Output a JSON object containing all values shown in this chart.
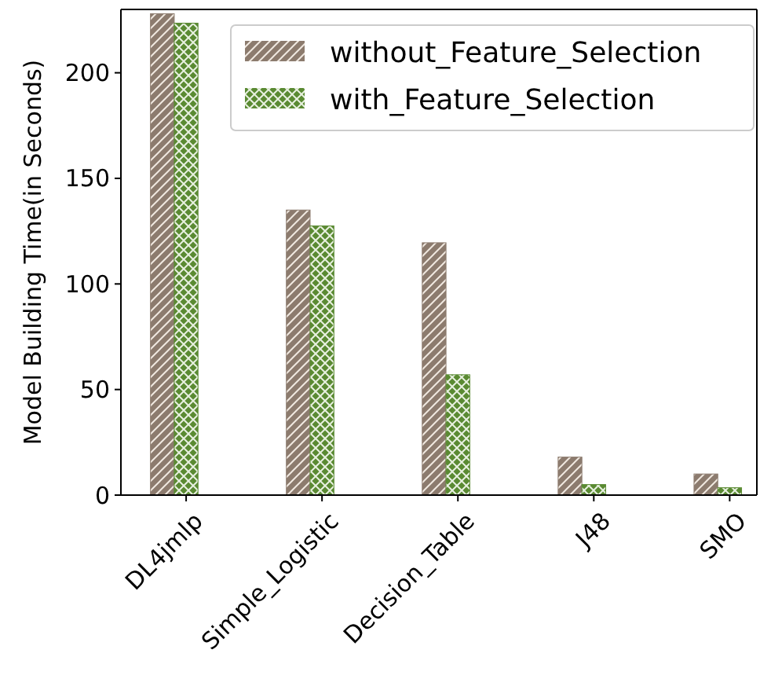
{
  "chart_data": {
    "type": "bar",
    "ylabel": "Model Building Time(in Seconds)",
    "categories": [
      "DL4jmlp",
      "Simple_Logistic",
      "Decision_Table",
      "J48",
      "SMO"
    ],
    "series": [
      {
        "name": "without_Feature_Selection",
        "color": "#8c7b6e",
        "values": [
          228,
          135,
          119.5,
          18,
          10
        ]
      },
      {
        "name": "with_Feature_Selection",
        "color": "#5a8a32",
        "values": [
          223.5,
          127.5,
          57,
          5,
          3.5
        ]
      }
    ],
    "ylim": [
      0,
      230
    ],
    "yticks": [
      0,
      50,
      100,
      150,
      200
    ],
    "legend": "top right"
  }
}
